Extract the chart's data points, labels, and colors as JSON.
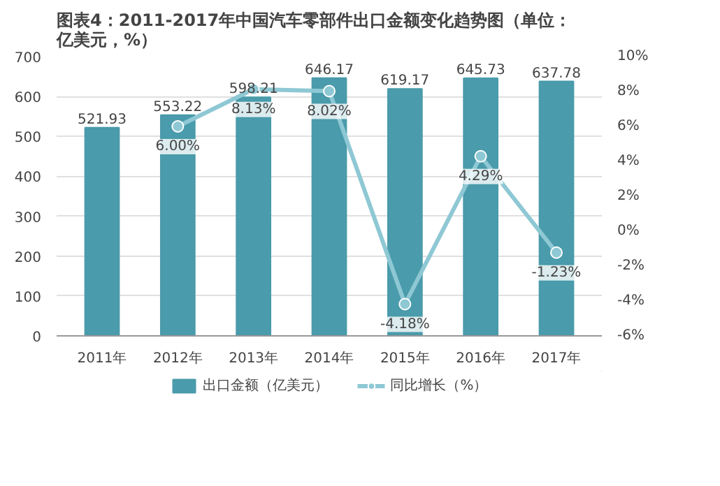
{
  "chart_data": {
    "type": "bar",
    "title": "图表4：2011-2017年中国汽车零部件出口金额变化趋势图（单位：亿美元，%）",
    "categories": [
      "2011年",
      "2012年",
      "2013年",
      "2014年",
      "2015年",
      "2016年",
      "2017年"
    ],
    "series": [
      {
        "name": "出口金额（亿美元）",
        "color": "#4a9bab",
        "values": [
          521.93,
          553.22,
          598.21,
          646.17,
          619.17,
          645.73,
          637.78
        ],
        "value_labels": [
          "521.93",
          "553.22",
          "598.21",
          "646.17",
          "619.17",
          "645.73",
          "637.78"
        ]
      },
      {
        "name": "同比增长（%）",
        "type": "line",
        "axis": "y2",
        "color": "#8ec8d4",
        "marker": "circle",
        "values": [
          null,
          6.0,
          8.13,
          8.02,
          -4.18,
          4.29,
          -1.23
        ],
        "value_labels": [
          null,
          "6.00%",
          "8.13%",
          "8.02%",
          "-4.18%",
          "4.29%",
          "-1.23%"
        ]
      }
    ],
    "ylim": [
      0,
      700
    ],
    "yticks": [
      0,
      100,
      200,
      300,
      400,
      500,
      600,
      700
    ],
    "y2lim": [
      -6,
      10
    ],
    "y2ticks": [
      {
        "value": -6,
        "label": "-6%"
      },
      {
        "value": -4,
        "label": "-4%"
      },
      {
        "value": -2,
        "label": "-2%"
      },
      {
        "value": 0,
        "label": "0%"
      },
      {
        "value": 2,
        "label": "2%"
      },
      {
        "value": 4,
        "label": "4%"
      },
      {
        "value": 6,
        "label": "6%"
      },
      {
        "value": 8,
        "label": "8%"
      },
      {
        "value": 10,
        "label": "10%"
      }
    ],
    "grid": "y",
    "legend": "bottom"
  }
}
